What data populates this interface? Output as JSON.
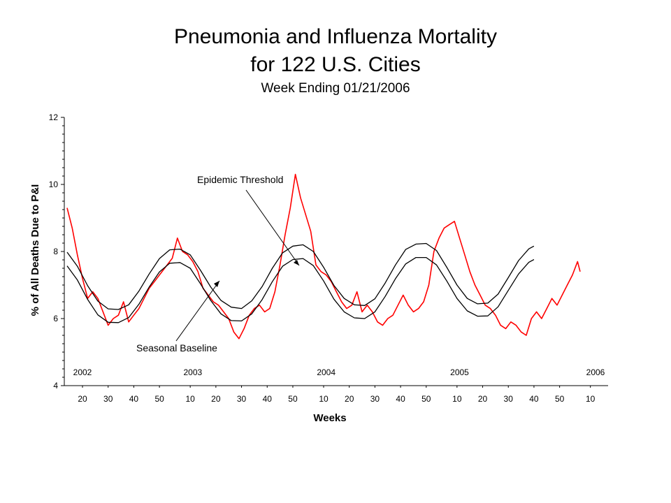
{
  "chart_data": {
    "type": "line",
    "title": "Pneumonia and Influenza Mortality",
    "subtitle": "for 122 U.S. Cities",
    "week_ending": "Week Ending 01/21/2006",
    "xlabel": "Weeks",
    "ylabel": "% of All Deaths Due to P&I",
    "ylim": [
      4,
      12
    ],
    "y_ticks": [
      "4",
      "6",
      "8",
      "10",
      "12"
    ],
    "week_ticks": [
      "20",
      "30",
      "40",
      "50",
      "10",
      "20",
      "30",
      "40",
      "50",
      "10",
      "20",
      "30",
      "40",
      "50",
      "10",
      "20",
      "30",
      "40",
      "50",
      "10"
    ],
    "year_labels": [
      "2002",
      "2003",
      "2004",
      "2005",
      "2006"
    ],
    "annotations": {
      "epidemic_threshold": "Epidemic Threshold",
      "seasonal_baseline": "Seasonal Baseline"
    },
    "series": [
      {
        "color": "#ff0000",
        "points": [
          [
            14,
            9.3
          ],
          [
            16,
            8.7
          ],
          [
            18,
            7.9
          ],
          [
            20,
            7.2
          ],
          [
            22,
            6.6
          ],
          [
            24,
            6.8
          ],
          [
            26,
            6.6
          ],
          [
            28,
            6.2
          ],
          [
            30,
            5.8
          ],
          [
            32,
            6.0
          ],
          [
            34,
            6.1
          ],
          [
            36,
            6.5
          ],
          [
            38,
            5.9
          ],
          [
            40,
            6.1
          ],
          [
            42,
            6.3
          ],
          [
            44,
            6.6
          ],
          [
            46,
            6.9
          ],
          [
            48,
            7.1
          ],
          [
            50,
            7.3
          ],
          [
            52,
            7.5
          ],
          [
            55,
            7.8
          ],
          [
            57,
            8.4
          ],
          [
            59,
            8.0
          ],
          [
            61,
            7.9
          ],
          [
            63,
            7.7
          ],
          [
            65,
            7.4
          ],
          [
            67,
            6.9
          ],
          [
            69,
            6.7
          ],
          [
            71,
            6.5
          ],
          [
            73,
            6.4
          ],
          [
            75,
            6.2
          ],
          [
            77,
            6.0
          ],
          [
            79,
            5.6
          ],
          [
            81,
            5.4
          ],
          [
            83,
            5.7
          ],
          [
            85,
            6.1
          ],
          [
            87,
            6.3
          ],
          [
            89,
            6.4
          ],
          [
            91,
            6.2
          ],
          [
            93,
            6.3
          ],
          [
            95,
            6.8
          ],
          [
            97,
            7.6
          ],
          [
            99,
            8.5
          ],
          [
            101,
            9.3
          ],
          [
            103,
            10.3
          ],
          [
            105,
            9.6
          ],
          [
            107,
            9.1
          ],
          [
            109,
            8.6
          ],
          [
            111,
            7.6
          ],
          [
            113,
            7.4
          ],
          [
            115,
            7.3
          ],
          [
            117,
            7.1
          ],
          [
            119,
            6.8
          ],
          [
            121,
            6.5
          ],
          [
            123,
            6.3
          ],
          [
            125,
            6.4
          ],
          [
            127,
            6.8
          ],
          [
            129,
            6.2
          ],
          [
            131,
            6.4
          ],
          [
            133,
            6.2
          ],
          [
            135,
            5.9
          ],
          [
            137,
            5.8
          ],
          [
            139,
            6.0
          ],
          [
            141,
            6.1
          ],
          [
            143,
            6.4
          ],
          [
            145,
            6.7
          ],
          [
            147,
            6.4
          ],
          [
            149,
            6.2
          ],
          [
            151,
            6.3
          ],
          [
            153,
            6.5
          ],
          [
            155,
            7.0
          ],
          [
            157,
            8.0
          ],
          [
            159,
            8.4
          ],
          [
            161,
            8.7
          ],
          [
            163,
            8.8
          ],
          [
            165,
            8.9
          ],
          [
            167,
            8.4
          ],
          [
            169,
            7.9
          ],
          [
            171,
            7.4
          ],
          [
            173,
            7.0
          ],
          [
            175,
            6.7
          ],
          [
            177,
            6.4
          ],
          [
            179,
            6.3
          ],
          [
            181,
            6.1
          ],
          [
            183,
            5.8
          ],
          [
            185,
            5.7
          ],
          [
            187,
            5.9
          ],
          [
            189,
            5.8
          ],
          [
            191,
            5.6
          ],
          [
            193,
            5.5
          ],
          [
            195,
            6.0
          ],
          [
            197,
            6.2
          ],
          [
            199,
            6.0
          ],
          [
            201,
            6.3
          ],
          [
            203,
            6.6
          ],
          [
            205,
            6.4
          ],
          [
            207,
            6.7
          ],
          [
            209,
            7.0
          ],
          [
            211,
            7.3
          ],
          [
            213,
            7.7
          ],
          [
            214,
            7.4
          ]
        ]
      },
      {
        "name": "Epidemic Threshold",
        "color": "#000000",
        "points": [
          [
            14,
            7.98
          ],
          [
            18,
            7.56
          ],
          [
            22,
            6.98
          ],
          [
            26,
            6.52
          ],
          [
            30,
            6.29
          ],
          [
            34,
            6.27
          ],
          [
            38,
            6.41
          ],
          [
            42,
            6.82
          ],
          [
            46,
            7.33
          ],
          [
            50,
            7.79
          ],
          [
            54,
            8.05
          ],
          [
            58,
            8.07
          ],
          [
            62,
            7.9
          ],
          [
            66,
            7.44
          ],
          [
            70,
            6.94
          ],
          [
            74,
            6.54
          ],
          [
            78,
            6.34
          ],
          [
            82,
            6.3
          ],
          [
            86,
            6.53
          ],
          [
            90,
            6.95
          ],
          [
            94,
            7.5
          ],
          [
            98,
            7.96
          ],
          [
            102,
            8.16
          ],
          [
            106,
            8.2
          ],
          [
            110,
            8.0
          ],
          [
            114,
            7.53
          ],
          [
            118,
            6.99
          ],
          [
            122,
            6.6
          ],
          [
            126,
            6.41
          ],
          [
            130,
            6.39
          ],
          [
            134,
            6.59
          ],
          [
            138,
            7.06
          ],
          [
            142,
            7.6
          ],
          [
            146,
            8.06
          ],
          [
            150,
            8.22
          ],
          [
            154,
            8.24
          ],
          [
            158,
            8.03
          ],
          [
            162,
            7.53
          ],
          [
            166,
            7.0
          ],
          [
            170,
            6.6
          ],
          [
            174,
            6.44
          ],
          [
            178,
            6.46
          ],
          [
            182,
            6.73
          ],
          [
            186,
            7.22
          ],
          [
            190,
            7.73
          ],
          [
            194,
            8.08
          ],
          [
            196,
            8.16
          ]
        ]
      },
      {
        "name": "Seasonal Baseline",
        "color": "#000000",
        "points": [
          [
            14,
            7.57
          ],
          [
            18,
            7.15
          ],
          [
            22,
            6.57
          ],
          [
            26,
            6.11
          ],
          [
            30,
            5.89
          ],
          [
            34,
            5.88
          ],
          [
            38,
            6.03
          ],
          [
            42,
            6.43
          ],
          [
            46,
            6.94
          ],
          [
            50,
            7.39
          ],
          [
            54,
            7.65
          ],
          [
            58,
            7.67
          ],
          [
            62,
            7.5
          ],
          [
            66,
            7.04
          ],
          [
            70,
            6.54
          ],
          [
            74,
            6.14
          ],
          [
            78,
            5.94
          ],
          [
            82,
            5.93
          ],
          [
            86,
            6.14
          ],
          [
            90,
            6.56
          ],
          [
            94,
            7.1
          ],
          [
            98,
            7.56
          ],
          [
            102,
            7.76
          ],
          [
            106,
            7.79
          ],
          [
            110,
            7.58
          ],
          [
            114,
            7.12
          ],
          [
            118,
            6.58
          ],
          [
            122,
            6.2
          ],
          [
            126,
            6.02
          ],
          [
            130,
            6.0
          ],
          [
            134,
            6.2
          ],
          [
            138,
            6.66
          ],
          [
            142,
            7.19
          ],
          [
            146,
            7.63
          ],
          [
            150,
            7.82
          ],
          [
            154,
            7.82
          ],
          [
            158,
            7.6
          ],
          [
            162,
            7.12
          ],
          [
            166,
            6.6
          ],
          [
            170,
            6.23
          ],
          [
            174,
            6.07
          ],
          [
            178,
            6.08
          ],
          [
            182,
            6.35
          ],
          [
            186,
            6.84
          ],
          [
            190,
            7.33
          ],
          [
            194,
            7.68
          ],
          [
            196,
            7.76
          ]
        ]
      }
    ]
  }
}
